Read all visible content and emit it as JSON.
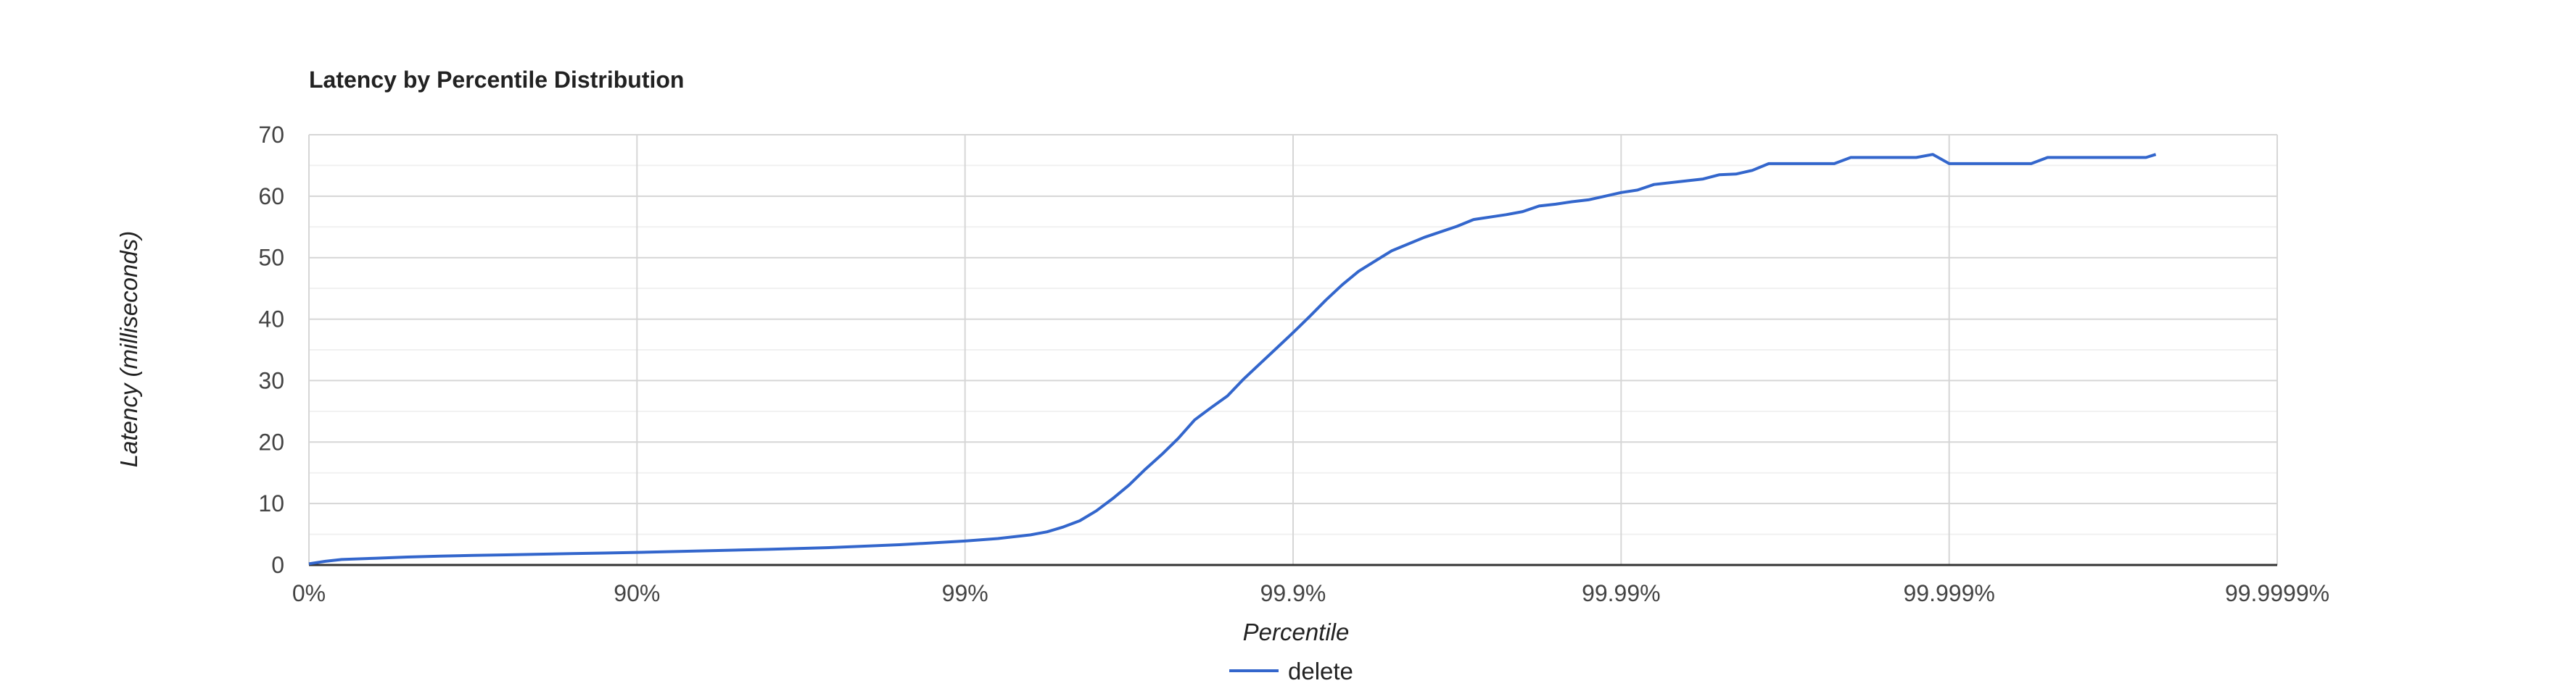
{
  "chart_data": {
    "type": "line",
    "title": "Latency by Percentile Distribution",
    "xlabel": "Percentile",
    "ylabel": "Latency (milliseconds)",
    "x_scale": "log-inverse-percentile",
    "xlim": [
      0,
      6
    ],
    "ylim": [
      0,
      70
    ],
    "x_ticks": [
      {
        "value": 0,
        "label": "0%"
      },
      {
        "value": 1,
        "label": "90%"
      },
      {
        "value": 2,
        "label": "99%"
      },
      {
        "value": 3,
        "label": "99.9%"
      },
      {
        "value": 4,
        "label": "99.99%"
      },
      {
        "value": 5,
        "label": "99.999%"
      },
      {
        "value": 6,
        "label": "99.9999%"
      }
    ],
    "y_ticks": [
      {
        "value": 0,
        "label": "0"
      },
      {
        "value": 10,
        "label": "10"
      },
      {
        "value": 20,
        "label": "20"
      },
      {
        "value": 30,
        "label": "30"
      },
      {
        "value": 40,
        "label": "40"
      },
      {
        "value": 50,
        "label": "50"
      },
      {
        "value": 60,
        "label": "60"
      },
      {
        "value": 70,
        "label": "70"
      }
    ],
    "grid": true,
    "minor_gridlines_y": true,
    "legend_position": "bottom",
    "series": [
      {
        "name": "delete",
        "color": "#3366cc",
        "x": [
          0,
          0.05,
          0.1,
          0.2,
          0.3,
          0.4,
          0.5,
          0.6,
          0.7,
          0.8,
          0.9,
          1.0,
          1.2,
          1.4,
          1.6,
          1.8,
          2.0,
          2.1,
          2.2,
          2.25,
          2.3,
          2.35,
          2.4,
          2.45,
          2.5,
          2.55,
          2.6,
          2.65,
          2.7,
          2.75,
          2.8,
          2.85,
          2.9,
          2.95,
          3.0,
          3.05,
          3.1,
          3.15,
          3.2,
          3.3,
          3.4,
          3.5,
          3.55,
          3.6,
          3.65,
          3.7,
          3.75,
          3.8,
          3.85,
          3.9,
          3.95,
          4.0,
          4.05,
          4.1,
          4.2,
          4.25,
          4.3,
          4.35,
          4.4,
          4.45,
          4.5,
          4.55,
          4.6,
          4.65,
          4.7,
          4.75,
          4.8,
          4.85,
          4.9,
          4.95,
          5.0,
          5.05,
          5.1,
          5.15,
          5.2,
          5.25,
          5.3,
          5.35,
          5.4,
          5.5,
          5.55,
          5.6,
          5.63
        ],
        "values": [
          0.2,
          0.6,
          0.9,
          1.1,
          1.3,
          1.45,
          1.55,
          1.65,
          1.75,
          1.85,
          1.95,
          2.05,
          2.3,
          2.55,
          2.85,
          3.3,
          3.9,
          4.3,
          4.9,
          5.4,
          6.2,
          7.2,
          8.8,
          10.8,
          13.0,
          15.6,
          18.0,
          20.6,
          23.6,
          25.6,
          27.5,
          30.3,
          32.8,
          35.3,
          37.8,
          40.4,
          43.1,
          45.6,
          47.8,
          51.1,
          53.3,
          55.1,
          56.2,
          56.6,
          57.0,
          57.5,
          58.4,
          58.7,
          59.1,
          59.4,
          60.0,
          60.6,
          61.0,
          61.9,
          62.5,
          62.8,
          63.5,
          63.6,
          64.2,
          65.3,
          65.3,
          65.3,
          65.3,
          65.3,
          66.3,
          66.3,
          66.3,
          66.3,
          66.3,
          66.8,
          65.3,
          65.3,
          65.3,
          65.3,
          65.3,
          65.3,
          66.3,
          66.3,
          66.3,
          66.3,
          66.3,
          66.3,
          66.8
        ]
      }
    ]
  }
}
